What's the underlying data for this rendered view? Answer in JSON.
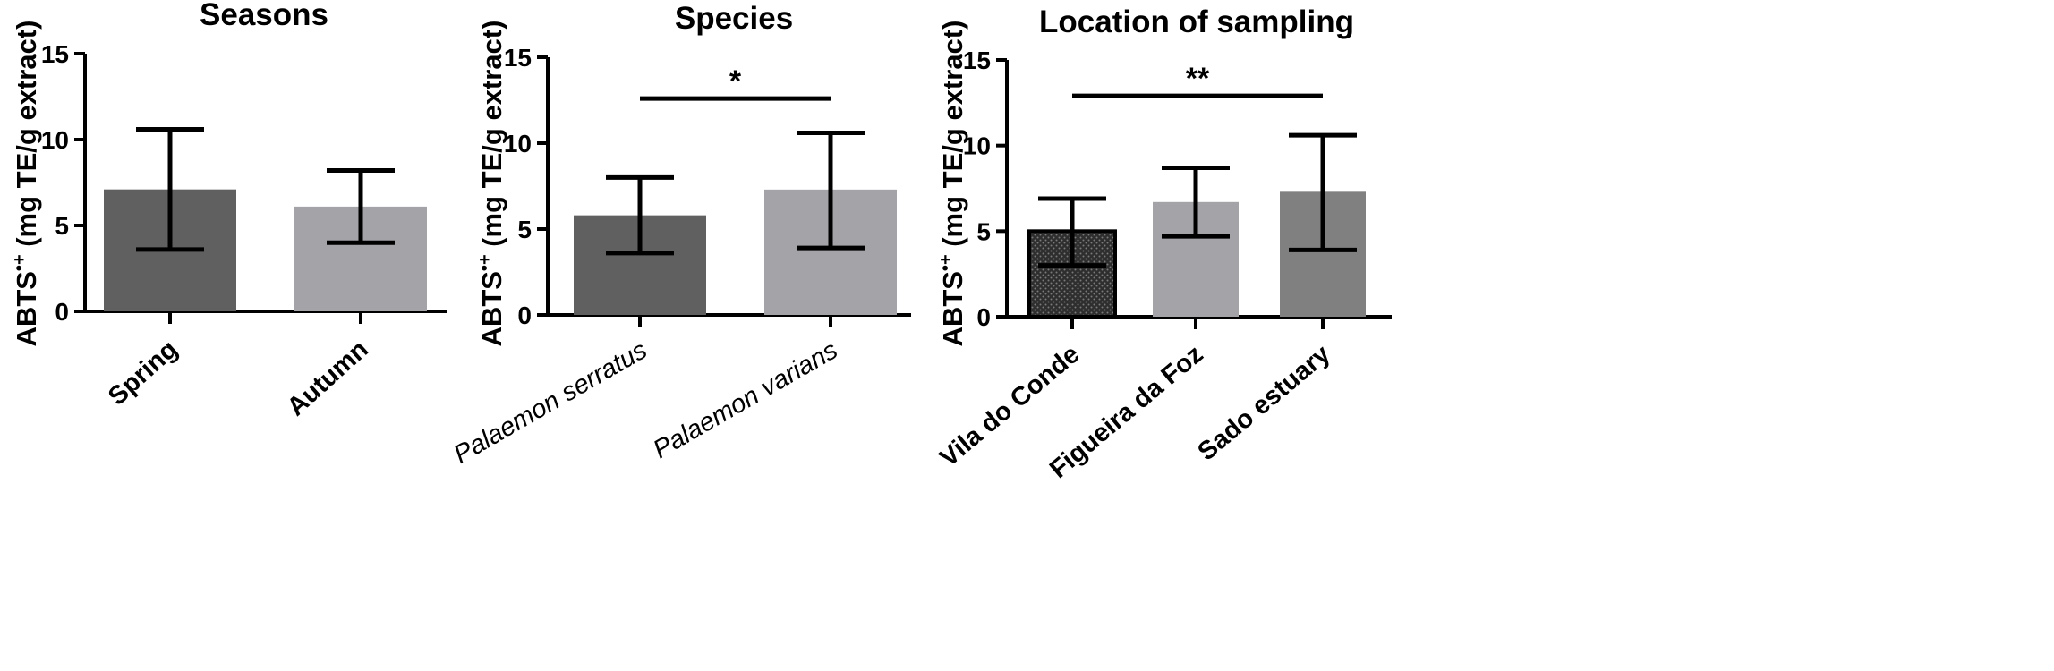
{
  "colors": {
    "dark_gray": "#606060",
    "light_gray": "#a3a3a8",
    "mid_gray": "#808080",
    "hatched_dark": "#2e2e2e",
    "axis": "#000000",
    "background": "#ffffff"
  },
  "chart_data": [
    {
      "type": "bar",
      "title": "Seasons",
      "ylabel": "ABTS•+ (mg TE/g extract)",
      "ylabel_base": "ABTS",
      "ylabel_sup": "•+",
      "ylabel_rest": " (mg TE/g extract)",
      "xlabel": "",
      "ylim": [
        0,
        15
      ],
      "yticks": [
        0,
        5,
        10,
        15
      ],
      "categories": [
        "Spring",
        "Autumn"
      ],
      "categories_italic": false,
      "values": [
        7.1,
        6.1
      ],
      "error_low": [
        3.6,
        4.0
      ],
      "error_high": [
        10.6,
        8.2
      ],
      "bar_colors": [
        "dark_gray",
        "light_gray"
      ],
      "significance": null
    },
    {
      "type": "bar",
      "title": "Species",
      "ylabel": "ABTS•+ (mg TE/g extract)",
      "ylabel_base": "ABTS",
      "ylabel_sup": "•+",
      "ylabel_rest": " (mg TE/g extract)",
      "xlabel": "",
      "ylim": [
        0,
        15
      ],
      "yticks": [
        0,
        5,
        10,
        15
      ],
      "categories": [
        "Palaemon serratus",
        "Palaemon varians"
      ],
      "categories_italic": true,
      "values": [
        5.8,
        7.3
      ],
      "error_low": [
        3.6,
        3.9
      ],
      "error_high": [
        8.0,
        10.6
      ],
      "bar_colors": [
        "dark_gray",
        "light_gray"
      ],
      "significance": {
        "label": "*",
        "from": 0,
        "to": 1,
        "y": 12.6
      }
    },
    {
      "type": "bar",
      "title": "Location of sampling",
      "ylabel": "ABTS•+ (mg TE/g extract)",
      "ylabel_base": "ABTS",
      "ylabel_sup": "•+",
      "ylabel_rest": " (mg TE/g extract)",
      "xlabel": "",
      "ylim": [
        0,
        15
      ],
      "yticks": [
        0,
        5,
        10,
        15
      ],
      "categories": [
        "Vila do Conde",
        "Figueira da Foz",
        "Sado estuary"
      ],
      "categories_italic": false,
      "values": [
        5.0,
        6.7,
        7.3
      ],
      "error_low": [
        3.0,
        4.7,
        3.9
      ],
      "error_high": [
        6.9,
        8.7,
        10.6
      ],
      "bar_colors": [
        "hatched_dark",
        "light_gray",
        "mid_gray"
      ],
      "significance": {
        "label": "**",
        "from": 0,
        "to": 2,
        "y": 12.9
      }
    }
  ]
}
